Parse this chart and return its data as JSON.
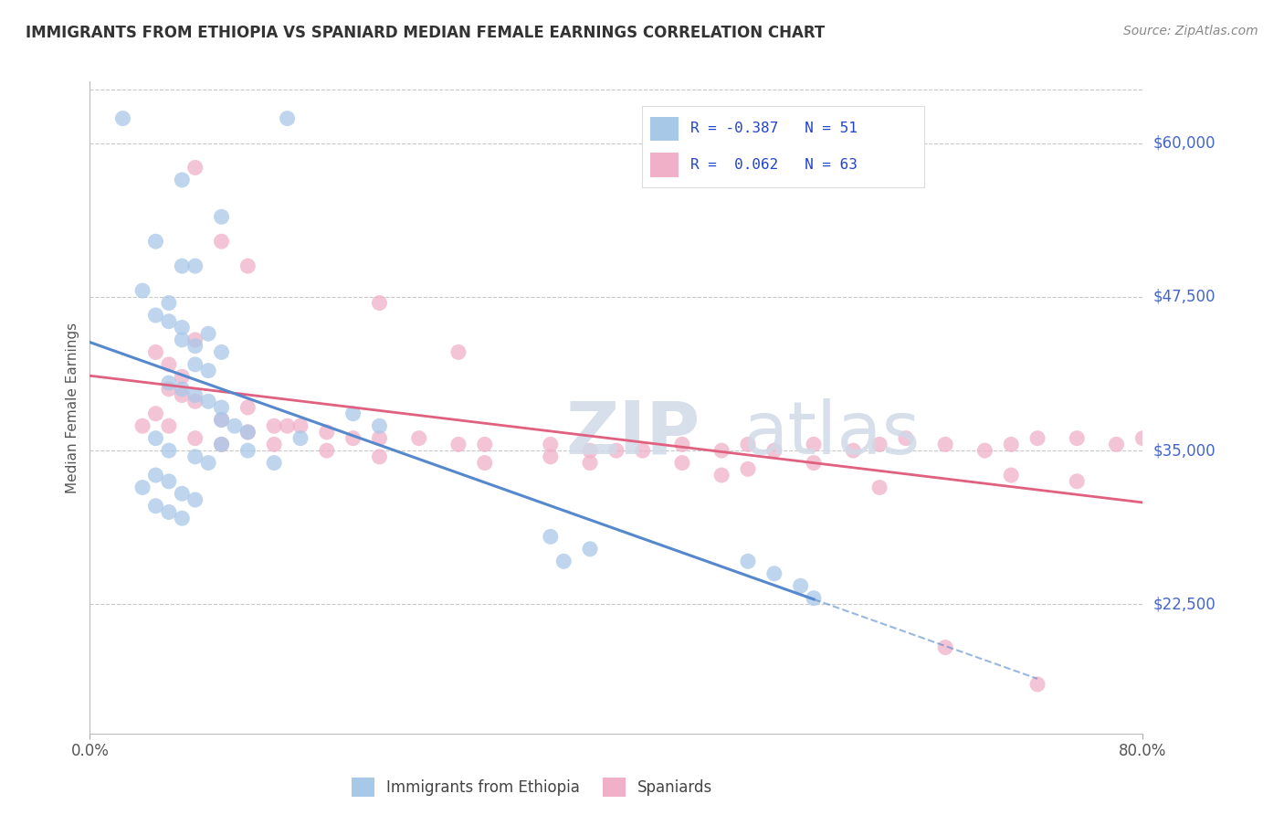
{
  "title": "IMMIGRANTS FROM ETHIOPIA VS SPANIARD MEDIAN FEMALE EARNINGS CORRELATION CHART",
  "source": "Source: ZipAtlas.com",
  "ylabel": "Median Female Earnings",
  "ytick_labels": [
    "$22,500",
    "$35,000",
    "$47,500",
    "$60,000"
  ],
  "ytick_values": [
    22500,
    35000,
    47500,
    60000
  ],
  "ymin": 12000,
  "ymax": 65000,
  "xmin": 0.0,
  "xmax": 0.8,
  "color_ethiopia": "#a8c8e8",
  "color_spaniard": "#f0b0c8",
  "color_trend_ethiopia": "#5588cc",
  "color_trend_spaniard": "#e06080",
  "color_axis_labels": "#4466cc",
  "background_color": "#ffffff",
  "grid_color": "#c8c8c8",
  "watermark_color": "#d0dae8",
  "ethiopia_x": [
    0.025,
    0.15,
    0.07,
    0.1,
    0.05,
    0.07,
    0.08,
    0.04,
    0.06,
    0.05,
    0.06,
    0.07,
    0.09,
    0.07,
    0.08,
    0.1,
    0.08,
    0.09,
    0.06,
    0.07,
    0.08,
    0.09,
    0.1,
    0.1,
    0.11,
    0.12,
    0.1,
    0.05,
    0.06,
    0.08,
    0.09,
    0.05,
    0.04,
    0.06,
    0.07,
    0.08,
    0.05,
    0.06,
    0.07,
    0.2,
    0.22,
    0.12,
    0.14,
    0.16,
    0.35,
    0.38,
    0.36,
    0.5,
    0.52,
    0.54,
    0.55
  ],
  "ethiopia_y": [
    62000,
    62000,
    57000,
    54000,
    52000,
    50000,
    50000,
    48000,
    47000,
    46000,
    45500,
    45000,
    44500,
    44000,
    43500,
    43000,
    42000,
    41500,
    40500,
    40000,
    39500,
    39000,
    38500,
    37500,
    37000,
    36500,
    35500,
    36000,
    35000,
    34500,
    34000,
    33000,
    32000,
    32500,
    31500,
    31000,
    30500,
    30000,
    29500,
    38000,
    37000,
    35000,
    34000,
    36000,
    28000,
    27000,
    26000,
    26000,
    25000,
    24000,
    23000
  ],
  "spaniard_x": [
    0.22,
    0.28,
    0.08,
    0.1,
    0.12,
    0.08,
    0.05,
    0.06,
    0.07,
    0.06,
    0.07,
    0.08,
    0.12,
    0.1,
    0.14,
    0.15,
    0.16,
    0.12,
    0.18,
    0.2,
    0.22,
    0.25,
    0.28,
    0.3,
    0.35,
    0.38,
    0.4,
    0.42,
    0.45,
    0.48,
    0.5,
    0.52,
    0.55,
    0.58,
    0.6,
    0.62,
    0.65,
    0.68,
    0.7,
    0.72,
    0.75,
    0.78,
    0.8,
    0.05,
    0.04,
    0.06,
    0.08,
    0.1,
    0.14,
    0.18,
    0.22,
    0.3,
    0.35,
    0.45,
    0.5,
    0.6,
    0.7,
    0.75,
    0.38,
    0.55,
    0.65,
    0.72,
    0.48
  ],
  "spaniard_y": [
    47000,
    43000,
    58000,
    52000,
    50000,
    44000,
    43000,
    42000,
    41000,
    40000,
    39500,
    39000,
    38500,
    37500,
    37000,
    37000,
    37000,
    36500,
    36500,
    36000,
    36000,
    36000,
    35500,
    35500,
    35500,
    35000,
    35000,
    35000,
    35500,
    35000,
    35500,
    35000,
    35500,
    35000,
    35500,
    36000,
    35500,
    35000,
    35500,
    36000,
    36000,
    35500,
    36000,
    38000,
    37000,
    37000,
    36000,
    35500,
    35500,
    35000,
    34500,
    34000,
    34500,
    34000,
    33500,
    32000,
    33000,
    32500,
    34000,
    34000,
    19000,
    16000,
    33000
  ]
}
